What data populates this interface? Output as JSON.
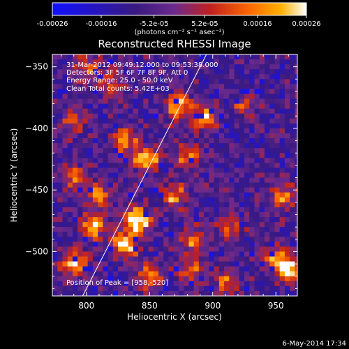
{
  "chart_data": {
    "type": "heatmap",
    "title": "Reconstructed RHESSI Image",
    "xlabel": "Heliocentric X (arcsec)",
    "ylabel": "Heliocentric Y (arcsec)",
    "xlim": [
      773,
      967
    ],
    "ylim": [
      -536,
      -340
    ],
    "xticks": [
      800,
      850,
      900,
      950
    ],
    "yticks": [
      -350,
      -400,
      -450,
      -500
    ],
    "colorbar": {
      "range": [
        -0.00026,
        0.00026
      ],
      "tick_labels": [
        "-0.00026",
        "-0.00016",
        "-5.2e-05",
        "5.2e-05",
        "0.00016",
        "0.00026"
      ],
      "units_label": "(photons cm⁻² s⁻¹ asec⁻²)",
      "colormap": [
        "#1010ff",
        "#3a1a80",
        "#6b2a8c",
        "#c02020",
        "#ff6a00",
        "#ffb000",
        "#ffffff"
      ]
    },
    "annotations": [
      "31-Mar-2012 09:49:12.000 to 09:53:38.000",
      "Detectors: 3F 5F 6F 7F 8F 9F, Att 0",
      "Energy Range: 25.0 - 50.0 keV",
      "Clean    Total counts: 5.42E+03"
    ],
    "peak_label": "Position of Peak = [958,-520]",
    "peak": [
      958,
      -520
    ],
    "limb_line": [
      [
        797,
        -536
      ],
      [
        895,
        -340
      ]
    ],
    "hotspots": [
      {
        "x": 840,
        "y": -475,
        "v": 1.0
      },
      {
        "x": 830,
        "y": -495,
        "v": 0.9
      },
      {
        "x": 805,
        "y": -480,
        "v": 0.8
      },
      {
        "x": 790,
        "y": -510,
        "v": 0.75
      },
      {
        "x": 848,
        "y": -425,
        "v": 0.85
      },
      {
        "x": 830,
        "y": -410,
        "v": 0.6
      },
      {
        "x": 873,
        "y": -382,
        "v": 0.8
      },
      {
        "x": 893,
        "y": -392,
        "v": 0.75
      },
      {
        "x": 880,
        "y": -422,
        "v": 0.55
      },
      {
        "x": 870,
        "y": -455,
        "v": 0.6
      },
      {
        "x": 885,
        "y": -490,
        "v": 0.55
      },
      {
        "x": 882,
        "y": -515,
        "v": 0.5
      },
      {
        "x": 850,
        "y": -520,
        "v": 0.55
      },
      {
        "x": 955,
        "y": -455,
        "v": 0.6
      },
      {
        "x": 960,
        "y": -515,
        "v": 0.9
      },
      {
        "x": 950,
        "y": -505,
        "v": 0.6
      },
      {
        "x": 915,
        "y": -480,
        "v": 0.4
      },
      {
        "x": 925,
        "y": -380,
        "v": 0.35
      },
      {
        "x": 800,
        "y": -350,
        "v": 0.5
      },
      {
        "x": 820,
        "y": -365,
        "v": 0.45
      },
      {
        "x": 790,
        "y": -440,
        "v": 0.5
      },
      {
        "x": 810,
        "y": -455,
        "v": 0.6
      },
      {
        "x": 790,
        "y": -395,
        "v": 0.4
      },
      {
        "x": 910,
        "y": -525,
        "v": 0.45
      }
    ]
  },
  "footer": {
    "date": "6-May-2014 17:34"
  }
}
